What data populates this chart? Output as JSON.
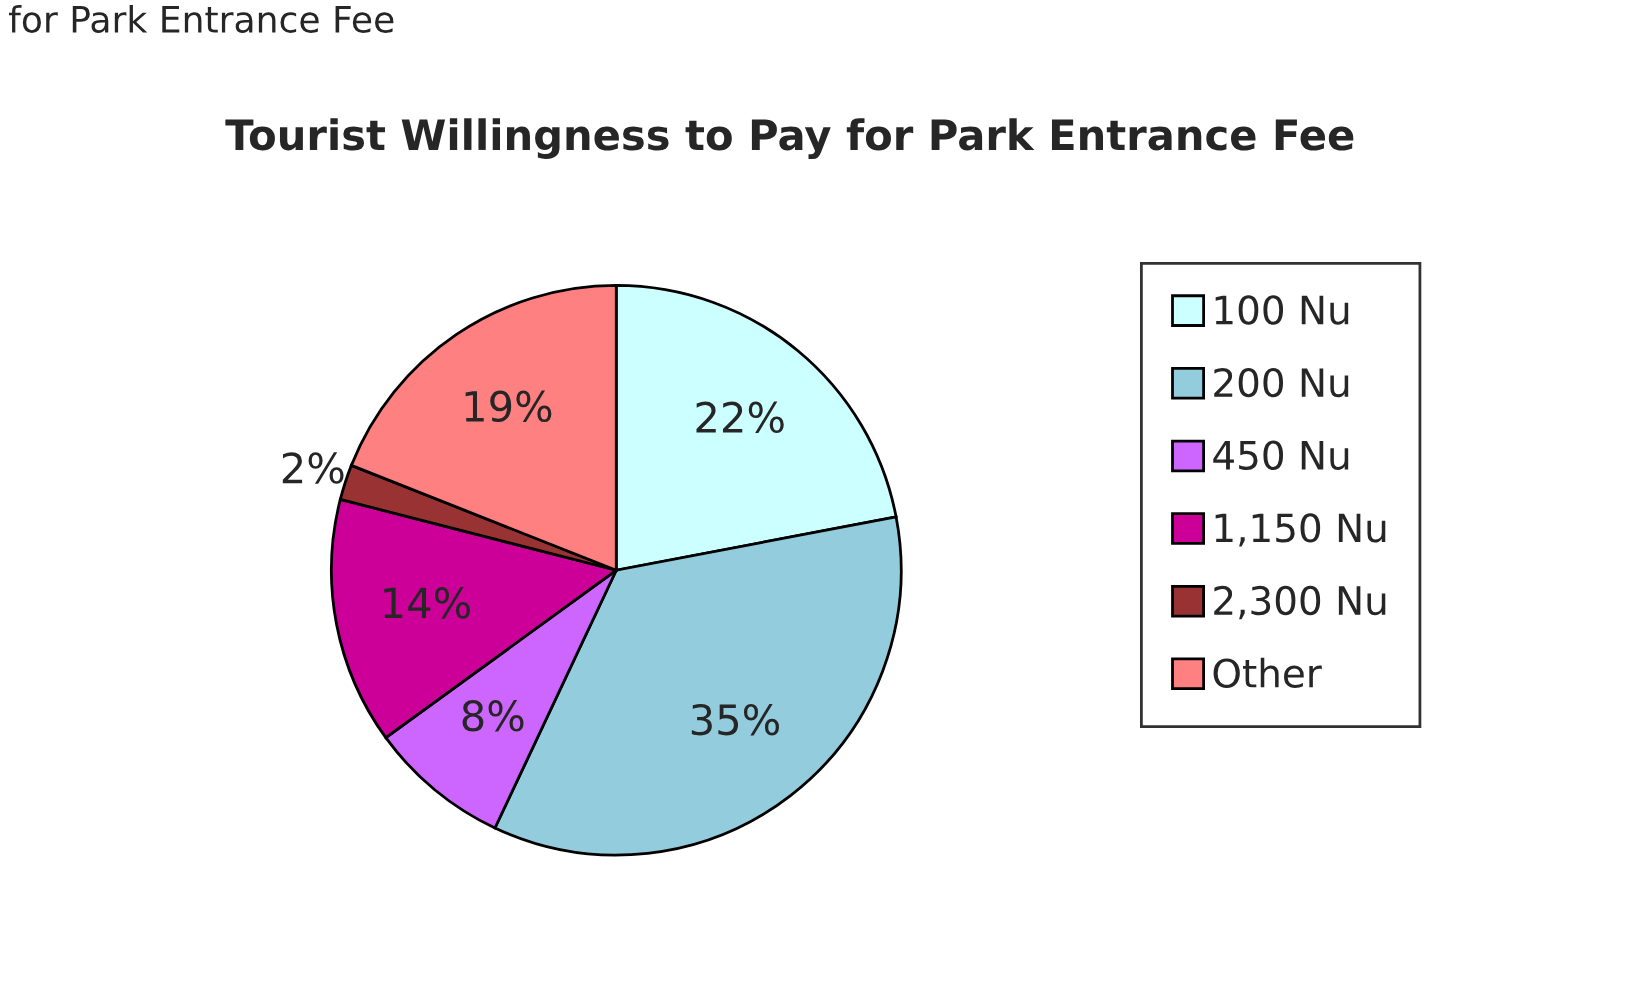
{
  "chart_data": {
    "type": "pie",
    "title": "Tourist Willingness to Pay for Park Entrance Fee",
    "annotations": [
      "for Park Entrance Fee"
    ],
    "categories": [
      "100 Nu",
      "200 Nu",
      "450 Nu",
      "1,150 Nu",
      "2,300 Nu",
      "Other"
    ],
    "values": [
      22,
      35,
      8,
      14,
      2,
      19
    ],
    "value_labels": [
      "22%",
      "35%",
      "8%",
      "14%",
      "2%",
      "19%"
    ],
    "colors": [
      "#ccffff",
      "#93cddd",
      "#cc66ff",
      "#cc0099",
      "#993333",
      "#ff8080"
    ],
    "legend": "right"
  }
}
